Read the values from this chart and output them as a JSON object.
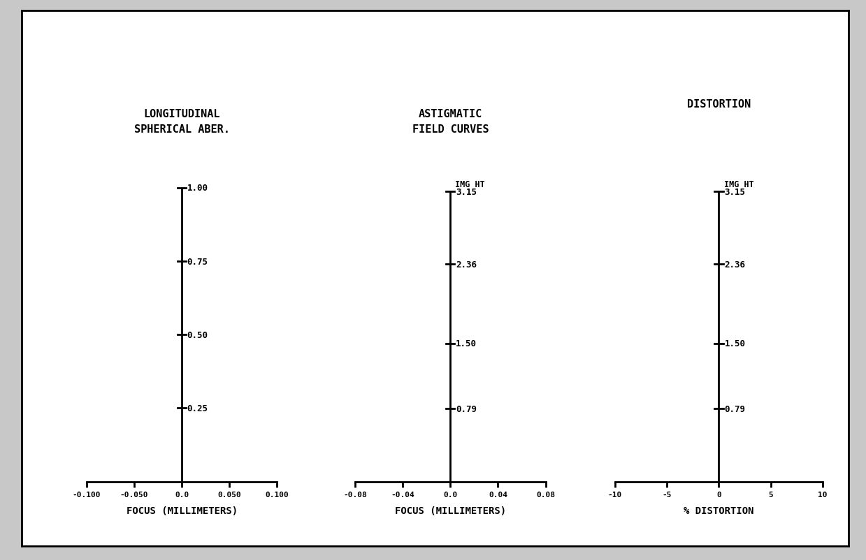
{
  "title1": "LONGITUDINAL\nSPHERICAL ABER.",
  "title2": "ASTIGMATIC\nFIELD CURVES",
  "title3": "DISTORTION",
  "outer_bg": "#c8c8c8",
  "inner_bg": "#ffffff",
  "plot1": {
    "xlabel": "FOCUS (MILLIMETERS)",
    "xlim": [
      -0.1,
      0.1
    ],
    "xticks": [
      -0.1,
      -0.05,
      0.0,
      0.05,
      0.1
    ],
    "xtick_labels": [
      "-0.100",
      "-0.050",
      "0.0",
      "0.050",
      "0.100"
    ],
    "ylim": [
      0.0,
      1.05
    ],
    "ymin": 0.0,
    "ymax": 1.0,
    "ytick_values": [
      0.25,
      0.5,
      0.75,
      1.0
    ],
    "ytick_labels": [
      "0.25",
      "0.50",
      "0.75",
      "1.00"
    ]
  },
  "plot2": {
    "xlabel": "FOCUS (MILLIMETERS)",
    "xlim": [
      -0.08,
      0.08
    ],
    "xticks": [
      -0.08,
      -0.04,
      0.0,
      0.04,
      0.08
    ],
    "xtick_labels": [
      "-0.08",
      "-0.04",
      "0.0",
      "0.04",
      "0.08"
    ],
    "ylim": [
      0.0,
      3.35
    ],
    "ymin": 0.0,
    "ymax": 3.15,
    "ytick_values": [
      0.79,
      1.5,
      2.36,
      3.15
    ],
    "ytick_labels": [
      "0.79",
      "1.50",
      "2.36",
      "3.15"
    ],
    "img_ht_label": "IMG HT"
  },
  "plot3": {
    "xlabel": "% DISTORTION",
    "xlim": [
      -10,
      10
    ],
    "xticks": [
      -10,
      -5,
      0,
      5,
      10
    ],
    "xtick_labels": [
      "-10",
      "-5",
      "0",
      "5",
      "10"
    ],
    "ylim": [
      0.0,
      3.35
    ],
    "ymin": 0.0,
    "ymax": 3.15,
    "ytick_values": [
      0.79,
      1.5,
      2.36,
      3.15
    ],
    "ytick_labels": [
      "0.79",
      "1.50",
      "2.36",
      "3.15"
    ],
    "img_ht_label": "IMG HT"
  }
}
